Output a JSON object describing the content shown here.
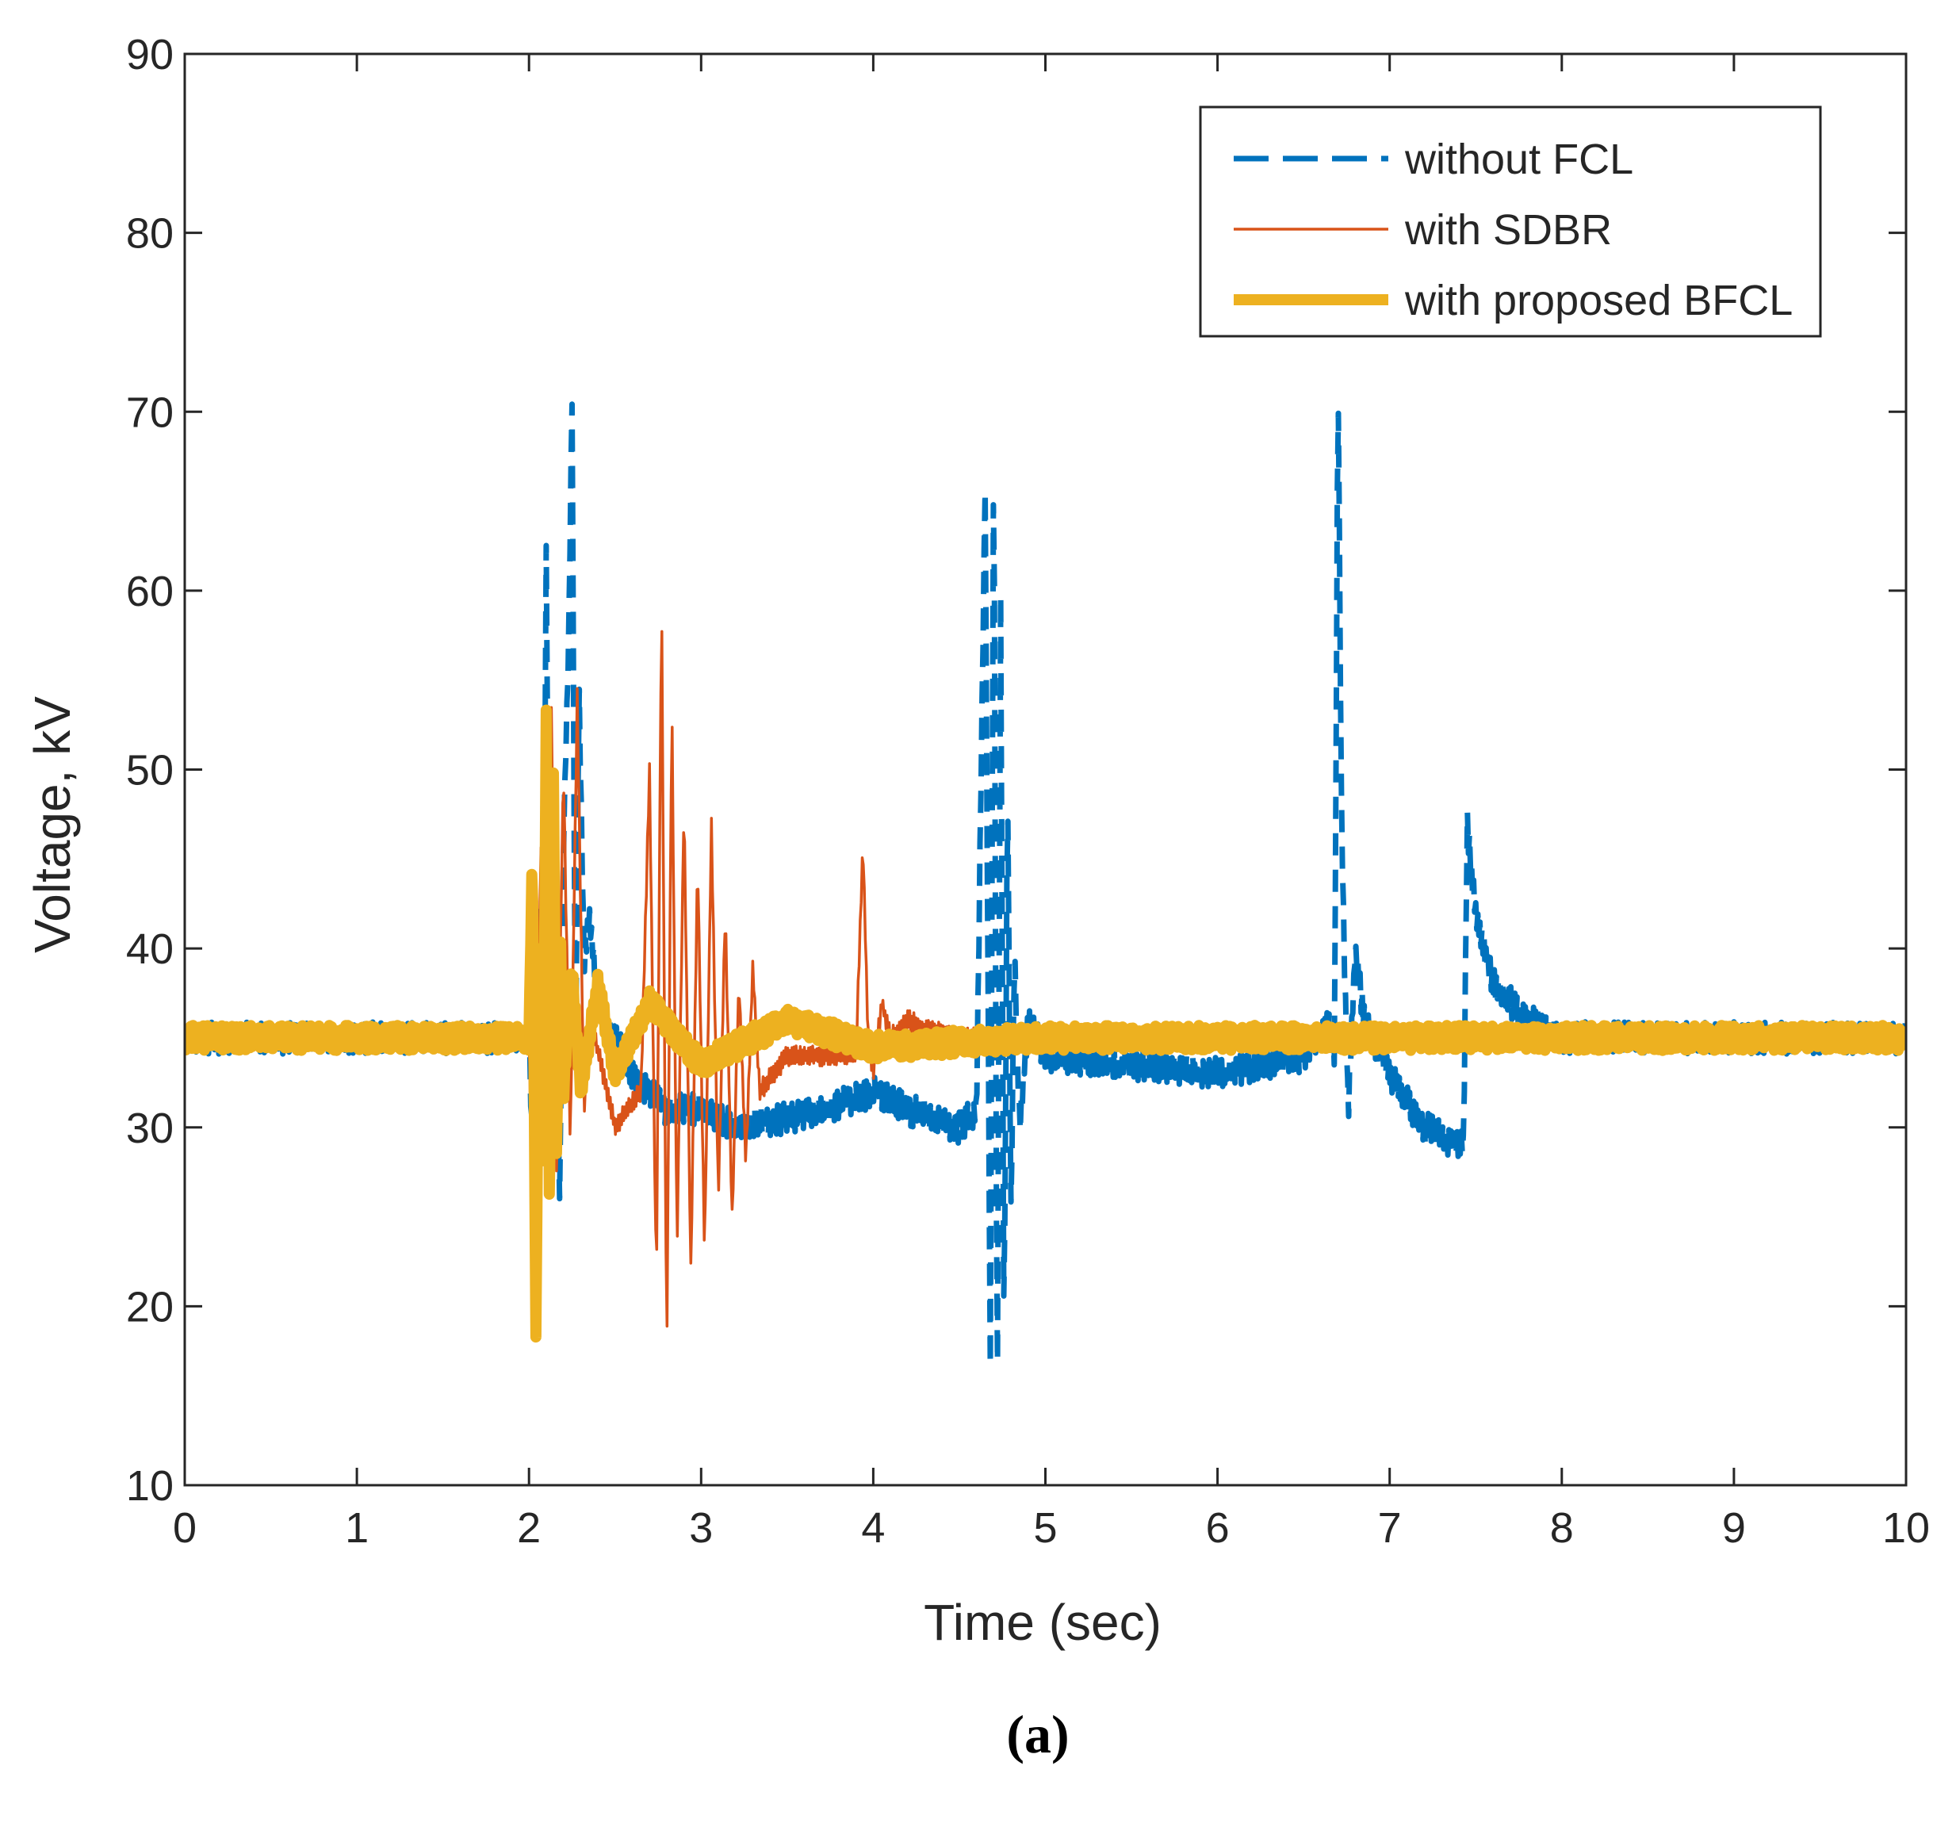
{
  "chart_data": {
    "type": "line",
    "caption": "(a)",
    "xlabel": "Time (sec)",
    "ylabel": "Voltage, kV",
    "xlim": [
      0,
      10
    ],
    "ylim": [
      10,
      90
    ],
    "xticks": [
      "0",
      "1",
      "2",
      "3",
      "4",
      "5",
      "6",
      "7",
      "8",
      "9",
      "10"
    ],
    "yticks": [
      "10",
      "20",
      "30",
      "40",
      "50",
      "60",
      "70",
      "80",
      "90"
    ],
    "grid": false,
    "legend_position": "top-right",
    "series": [
      {
        "name": "without FCL",
        "color": "#0072BD",
        "style": "dashed",
        "x": [
          0,
          2.0,
          2.02,
          2.05,
          2.08,
          2.1,
          2.13,
          2.15,
          2.18,
          2.2,
          2.23,
          2.25,
          2.27,
          2.29,
          2.32,
          2.35,
          2.4,
          2.5,
          2.6,
          2.8,
          3.0,
          3.2,
          3.5,
          3.7,
          4.0,
          4.2,
          4.5,
          4.6,
          4.65,
          4.68,
          4.7,
          4.72,
          4.74,
          4.76,
          4.78,
          4.8,
          4.82,
          4.85,
          4.9,
          5.0,
          5.5,
          6.0,
          6.5,
          6.65,
          6.68,
          6.7,
          6.72,
          6.74,
          6.76,
          6.8,
          6.85,
          7.0,
          7.2,
          7.4,
          7.43,
          7.45,
          7.5,
          7.6,
          7.8,
          8.0,
          10.0
        ],
        "y": [
          35,
          35,
          29,
          42,
          33,
          62,
          28,
          36,
          26,
          46,
          57,
          71,
          33,
          55,
          39,
          42,
          37,
          35,
          33,
          31,
          31,
          30,
          30.5,
          31,
          32,
          31,
          30,
          31,
          66,
          16,
          71,
          13,
          59,
          17,
          50,
          25,
          40,
          30,
          36,
          34,
          33.5,
          33,
          34,
          36,
          34,
          73,
          48,
          38,
          31,
          40,
          36,
          33,
          30,
          29,
          29,
          47,
          42,
          38,
          36,
          35,
          35
        ]
      },
      {
        "name": "with SDBR",
        "color": "#D95319",
        "style": "solid",
        "x": [
          0,
          2.0,
          2.03,
          2.07,
          2.1,
          2.13,
          2.16,
          2.2,
          2.24,
          2.28,
          2.32,
          2.36,
          2.5,
          2.65,
          2.7,
          2.74,
          2.77,
          2.8,
          2.83,
          2.86,
          2.9,
          2.94,
          2.98,
          3.02,
          3.06,
          3.1,
          3.14,
          3.18,
          3.22,
          3.26,
          3.3,
          3.34,
          3.5,
          3.9,
          3.94,
          3.97,
          4.0,
          4.05,
          4.1,
          4.2,
          4.3,
          4.5,
          5.0,
          10.0
        ],
        "y": [
          35,
          35,
          20,
          46,
          26,
          54,
          27,
          50,
          29,
          54,
          31,
          36,
          30,
          32,
          50,
          21,
          60,
          17,
          54,
          23,
          48,
          22,
          45,
          23,
          47,
          26,
          42,
          25,
          38,
          28,
          39,
          32,
          34,
          34,
          46,
          35,
          33,
          37,
          35,
          36,
          35.5,
          35,
          35,
          35
        ]
      },
      {
        "name": "with proposed BFCL",
        "color": "#EDB120",
        "style": "thick",
        "x": [
          0,
          2.0,
          2.02,
          2.04,
          2.06,
          2.08,
          2.1,
          2.12,
          2.14,
          2.16,
          2.18,
          2.2,
          2.25,
          2.3,
          2.4,
          2.5,
          2.7,
          3.0,
          3.5,
          4.0,
          5.0,
          10.0
        ],
        "y": [
          35,
          35,
          46,
          18,
          43,
          26,
          53,
          24,
          53,
          28,
          42,
          32,
          39,
          32,
          38,
          33,
          37,
          33.5,
          36,
          34.5,
          35,
          35
        ]
      }
    ]
  }
}
